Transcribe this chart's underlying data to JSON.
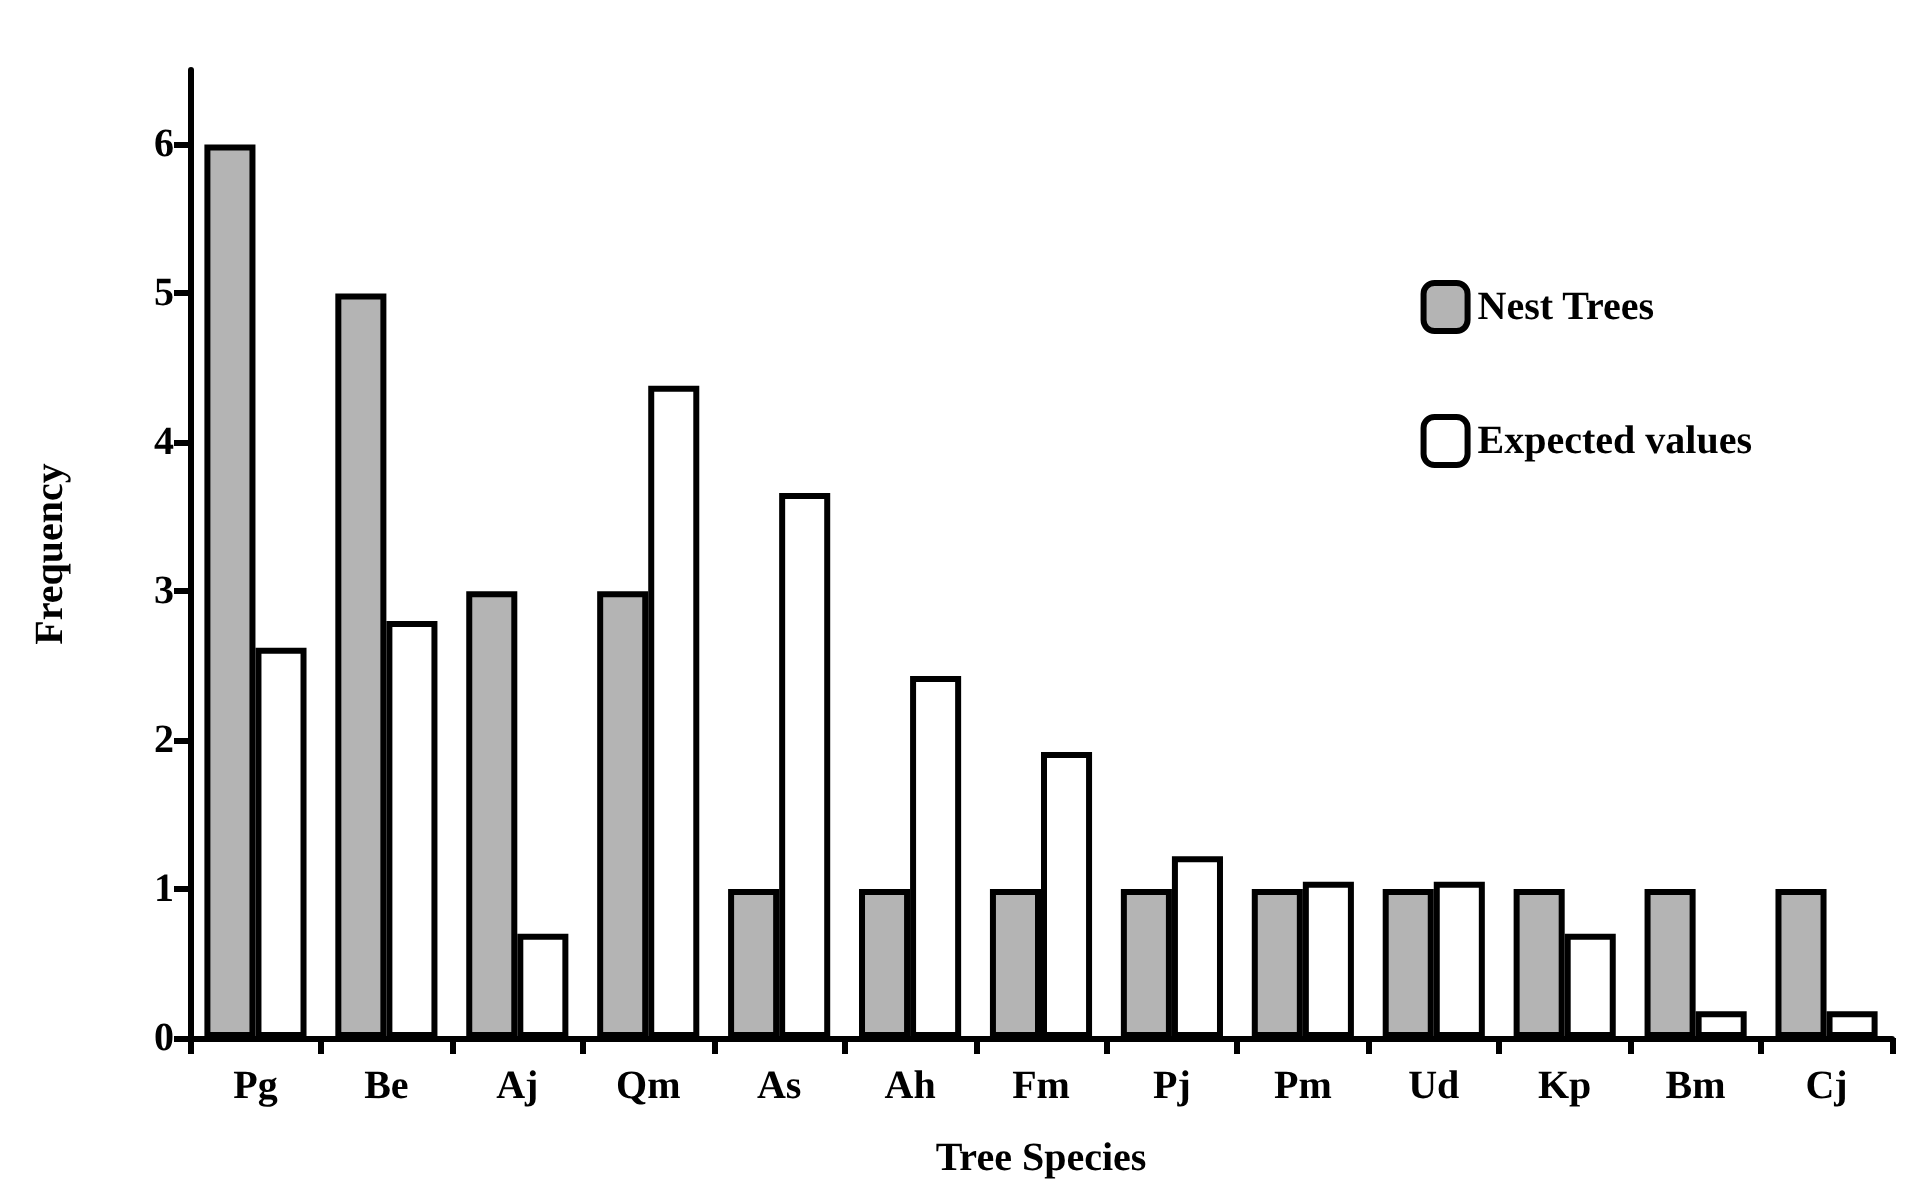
{
  "chart_data": {
    "type": "bar",
    "xlabel": "Tree Species",
    "ylabel": "Frequency",
    "categories": [
      "Pg",
      "Be",
      "Aj",
      "Qm",
      "As",
      "Ah",
      "Fm",
      "Pj",
      "Pm",
      "Ud",
      "Kp",
      "Bm",
      "Cj"
    ],
    "series": [
      {
        "name": "Nest Trees",
        "color": "#b4b4b4",
        "values": [
          6,
          5,
          3,
          3,
          1,
          1,
          1,
          1,
          1,
          1,
          1,
          1,
          1
        ]
      },
      {
        "name": "Expected values",
        "color": "#ffffff",
        "values": [
          2.62,
          2.8,
          0.7,
          4.38,
          3.66,
          2.43,
          1.92,
          1.22,
          1.05,
          1.05,
          0.7,
          0.18,
          0.18
        ]
      }
    ],
    "ylim": [
      0,
      6.5
    ],
    "yticks": [
      0,
      1,
      2,
      3,
      4,
      5,
      6
    ],
    "grid": false,
    "legend": "top right"
  }
}
